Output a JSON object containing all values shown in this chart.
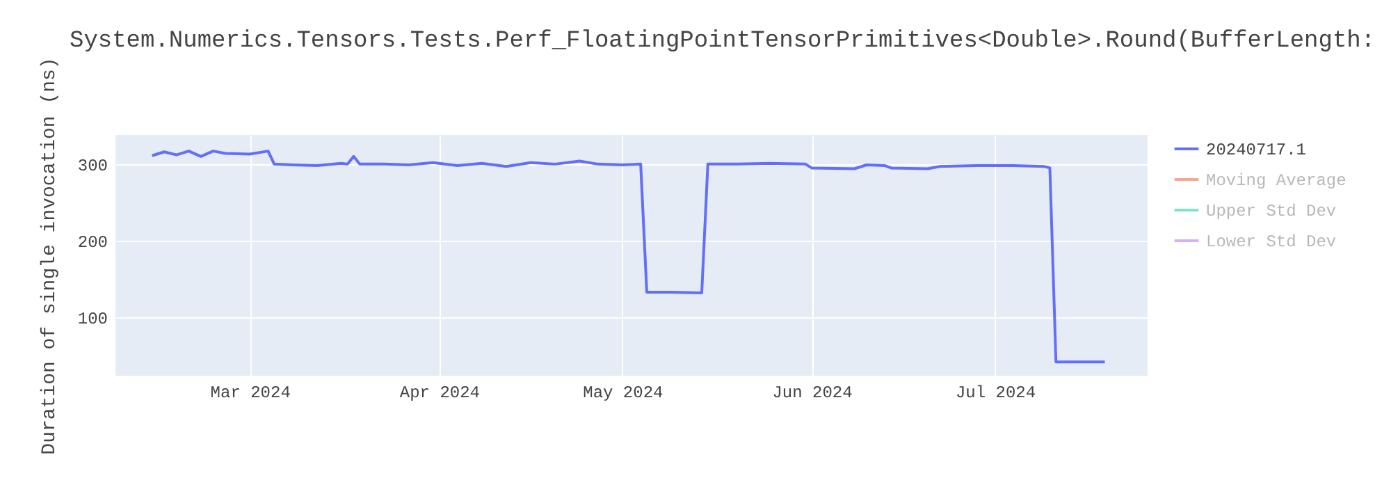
{
  "chart_data": {
    "type": "line",
    "title": "System.Numerics.Tensors.Tests.Perf_FloatingPointTensorPrimitives<Double>.Round(BufferLength:",
    "ylabel": "Duration of single invocation (ns)",
    "x": [
      "2024-02-14",
      "2024-02-16",
      "2024-02-18",
      "2024-02-20",
      "2024-02-22",
      "2024-02-24",
      "2024-02-26",
      "2024-03-01",
      "2024-03-04",
      "2024-03-05",
      "2024-03-08",
      "2024-03-12",
      "2024-03-16",
      "2024-03-17",
      "2024-03-18",
      "2024-03-19",
      "2024-03-23",
      "2024-03-27",
      "2024-03-31",
      "2024-04-04",
      "2024-04-08",
      "2024-04-12",
      "2024-04-16",
      "2024-04-20",
      "2024-04-24",
      "2024-04-27",
      "2024-05-01",
      "2024-05-04",
      "2024-05-05",
      "2024-05-09",
      "2024-05-14",
      "2024-05-15",
      "2024-05-20",
      "2024-05-25",
      "2024-05-31",
      "2024-06-01",
      "2024-06-08",
      "2024-06-10",
      "2024-06-13",
      "2024-06-14",
      "2024-06-20",
      "2024-06-22",
      "2024-06-28",
      "2024-07-04",
      "2024-07-09",
      "2024-07-10",
      "2024-07-11",
      "2024-07-19"
    ],
    "series": [
      {
        "name": "20240717.1",
        "color": "#636efa",
        "values": [
          311,
          316,
          312,
          317,
          310,
          317,
          314,
          313,
          317,
          300,
          299,
          298,
          301,
          300,
          310,
          300,
          300,
          299,
          302,
          298,
          301,
          297,
          302,
          300,
          304,
          300,
          299,
          300,
          133,
          133,
          132,
          300,
          300,
          301,
          300,
          295,
          294,
          299,
          298,
          295,
          294,
          297,
          298,
          298,
          297,
          295,
          42,
          42
        ]
      },
      {
        "name": "Moving Average",
        "color": "#f5a892",
        "values": [
          null,
          null,
          null,
          null,
          null,
          null,
          null,
          null,
          null,
          null,
          null,
          null,
          null,
          null,
          null,
          null,
          null,
          null,
          null,
          null,
          null,
          null,
          null,
          null,
          null,
          null,
          null,
          null,
          null,
          null,
          null,
          null,
          null,
          null,
          null,
          null,
          null,
          null,
          null,
          null,
          null,
          null,
          null,
          null,
          null,
          null,
          null,
          null
        ]
      },
      {
        "name": "Upper Std Dev",
        "color": "#7fe5c9",
        "values": [
          null,
          null,
          null,
          null,
          null,
          null,
          null,
          null,
          null,
          null,
          null,
          null,
          null,
          null,
          null,
          null,
          null,
          null,
          null,
          null,
          null,
          null,
          null,
          null,
          null,
          null,
          null,
          null,
          null,
          null,
          null,
          null,
          null,
          null,
          null,
          null,
          null,
          null,
          null,
          null,
          null,
          null,
          null,
          null,
          null,
          null,
          null,
          null
        ]
      },
      {
        "name": "Lower Std Dev",
        "color": "#d5b0fc",
        "values": [
          null,
          null,
          null,
          null,
          null,
          null,
          null,
          null,
          null,
          null,
          null,
          null,
          null,
          null,
          null,
          null,
          null,
          null,
          null,
          null,
          null,
          null,
          null,
          null,
          null,
          null,
          null,
          null,
          null,
          null,
          null,
          null,
          null,
          null,
          null,
          null,
          null,
          null,
          null,
          null,
          null,
          null,
          null,
          null,
          null,
          null,
          null,
          null
        ]
      }
    ],
    "xlim": [
      "2024-02-08",
      "2024-07-26"
    ],
    "xticks": [
      {
        "value": "2024-03-01",
        "label": "Mar 2024"
      },
      {
        "value": "2024-04-01",
        "label": "Apr 2024"
      },
      {
        "value": "2024-05-01",
        "label": "May 2024"
      },
      {
        "value": "2024-06-01",
        "label": "Jun 2024"
      },
      {
        "value": "2024-07-01",
        "label": "Jul 2024"
      }
    ],
    "ylim": [
      24,
      338
    ],
    "yticks": [
      100,
      200,
      300
    ],
    "grid": true,
    "legend": "top right",
    "marker": "none",
    "line_style": "solid"
  }
}
